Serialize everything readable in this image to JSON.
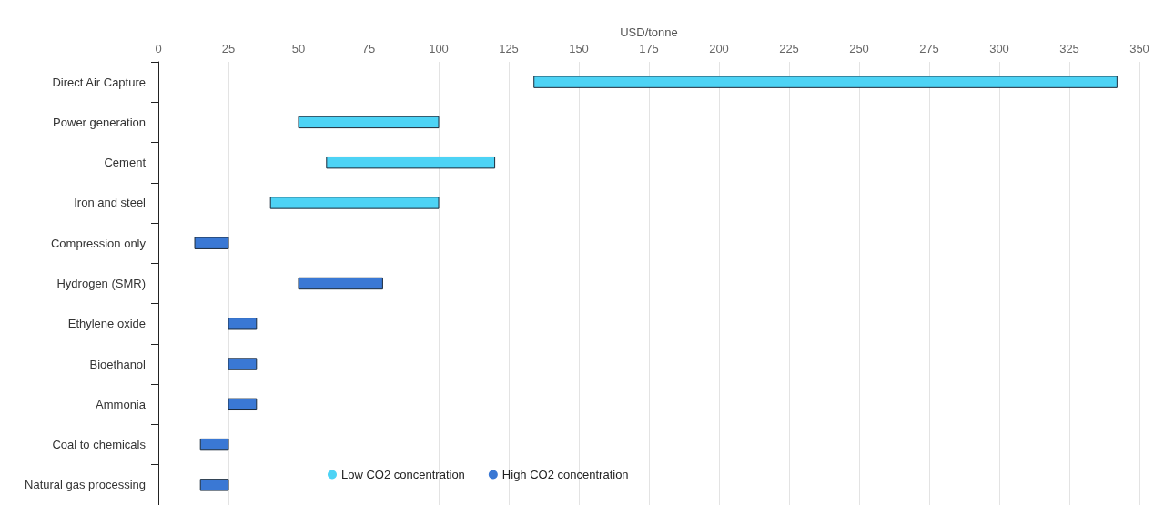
{
  "chart_data": {
    "type": "bar",
    "orientation": "horizontal",
    "xlabel": "USD/tonne",
    "categories": [
      "Direct Air Capture",
      "Power generation",
      "Cement",
      "Iron and steel",
      "Compression only",
      "Hydrogen (SMR)",
      "Ethylene oxide",
      "Bioethanol",
      "Ammonia",
      "Coal to chemicals",
      "Natural gas processing"
    ],
    "series": [
      {
        "name": "Low CO2 concentration",
        "color": "#4dd3f5",
        "base": [
          134,
          50,
          60,
          40,
          null,
          null,
          null,
          null,
          null,
          null,
          null
        ],
        "values": [
          208,
          50,
          60,
          60,
          null,
          null,
          null,
          null,
          null,
          null,
          null
        ]
      },
      {
        "name": "High CO2 concentration",
        "color": "#3a78d4",
        "base": [
          null,
          null,
          null,
          null,
          13,
          50,
          25,
          25,
          25,
          15,
          15
        ],
        "values": [
          null,
          null,
          null,
          null,
          12,
          30,
          10,
          10,
          10,
          10,
          10
        ]
      }
    ],
    "xlim": [
      0,
      350
    ],
    "xticks": [
      0,
      25,
      50,
      75,
      100,
      125,
      150,
      175,
      200,
      225,
      250,
      275,
      300,
      325,
      350
    ],
    "grid": "x",
    "legend": "bottom"
  }
}
